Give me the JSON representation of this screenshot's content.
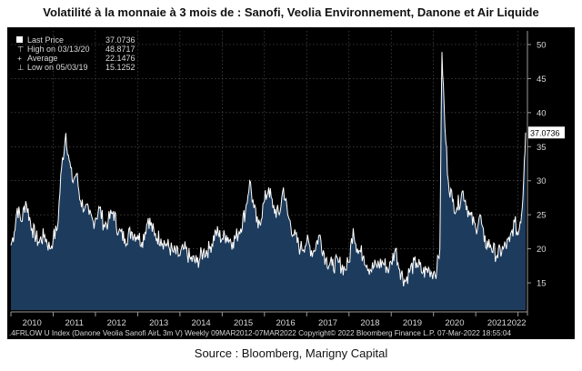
{
  "title": "Volatilité à la monnaie à 3 mois de : Sanofi, Veolia Environnement, Danone et Air Liquide",
  "source": "Source : Bloomberg, Marigny Capital",
  "chart_data": {
    "type": "area",
    "x_start": 2010.0,
    "x_end": 2022.18,
    "ylim": [
      11,
      52
    ],
    "y_ticks": [
      15,
      20,
      25,
      30,
      35,
      40,
      45,
      50
    ],
    "x_ticks": [
      "2010",
      "2011",
      "2012",
      "2013",
      "2014",
      "2015",
      "2016",
      "2017",
      "2018",
      "2019",
      "2020",
      "2021",
      "2022"
    ],
    "grid": true,
    "axis_position": "right",
    "last_price_label": "37.0736",
    "legend": [
      {
        "label": "Last Price",
        "value": "37.0736"
      },
      {
        "label": "High on 03/13/20",
        "value": "48.8717"
      },
      {
        "label": "Average",
        "value": "22.1476"
      },
      {
        "label": "Low on 05/03/19",
        "value": "15.1252"
      }
    ],
    "footer": ".4FRLOW U Index (Danone Veolia Sanofi AirL 3m V)  Weekly 09MAR2012-07MAR2022 Copyright© 2022 Bloomberg Finance L.P.  07-Mar-2022 18:55:04",
    "colors": {
      "background": "#000000",
      "line": "#ffffff",
      "fill": "#1d3b5c",
      "grid": "#5a5a5a",
      "text": "#d8d8d8",
      "label_box": "#ffffff"
    },
    "series": [
      {
        "points": [
          [
            2010.0,
            20.5
          ],
          [
            2010.08,
            22.5
          ],
          [
            2010.15,
            26
          ],
          [
            2010.25,
            24
          ],
          [
            2010.35,
            27
          ],
          [
            2010.5,
            23
          ],
          [
            2010.65,
            21
          ],
          [
            2010.8,
            22
          ],
          [
            2010.92,
            20
          ],
          [
            2011.0,
            21.5
          ],
          [
            2011.1,
            23
          ],
          [
            2011.2,
            32
          ],
          [
            2011.3,
            37
          ],
          [
            2011.38,
            33
          ],
          [
            2011.45,
            30
          ],
          [
            2011.55,
            31
          ],
          [
            2011.65,
            27
          ],
          [
            2011.75,
            26
          ],
          [
            2011.85,
            25
          ],
          [
            2011.95,
            24
          ],
          [
            2012.0,
            24.5
          ],
          [
            2012.1,
            26
          ],
          [
            2012.2,
            23.5
          ],
          [
            2012.3,
            24
          ],
          [
            2012.42,
            25.5
          ],
          [
            2012.55,
            22.5
          ],
          [
            2012.7,
            21.5
          ],
          [
            2012.85,
            22.5
          ],
          [
            2013.0,
            22
          ],
          [
            2013.1,
            21
          ],
          [
            2013.25,
            24.5
          ],
          [
            2013.4,
            22
          ],
          [
            2013.55,
            21.5
          ],
          [
            2013.7,
            20.5
          ],
          [
            2013.85,
            19.5
          ],
          [
            2014.0,
            19
          ],
          [
            2014.1,
            20
          ],
          [
            2014.25,
            18.5
          ],
          [
            2014.4,
            18
          ],
          [
            2014.55,
            19.5
          ],
          [
            2014.7,
            20
          ],
          [
            2014.85,
            22.5
          ],
          [
            2015.0,
            21.5
          ],
          [
            2015.1,
            22
          ],
          [
            2015.25,
            21
          ],
          [
            2015.4,
            22.5
          ],
          [
            2015.55,
            25.5
          ],
          [
            2015.65,
            30
          ],
          [
            2015.75,
            26
          ],
          [
            2015.85,
            23
          ],
          [
            2016.0,
            27
          ],
          [
            2016.1,
            29
          ],
          [
            2016.2,
            26
          ],
          [
            2016.35,
            25
          ],
          [
            2016.45,
            29
          ],
          [
            2016.55,
            25
          ],
          [
            2016.7,
            22
          ],
          [
            2016.85,
            20
          ],
          [
            2017.0,
            21
          ],
          [
            2017.15,
            19.5
          ],
          [
            2017.3,
            22
          ],
          [
            2017.45,
            18.5
          ],
          [
            2017.6,
            17.5
          ],
          [
            2017.75,
            18
          ],
          [
            2017.9,
            17
          ],
          [
            2018.0,
            18
          ],
          [
            2018.1,
            23
          ],
          [
            2018.2,
            20
          ],
          [
            2018.35,
            19
          ],
          [
            2018.5,
            17
          ],
          [
            2018.65,
            17.5
          ],
          [
            2018.8,
            18
          ],
          [
            2018.95,
            17
          ],
          [
            2019.0,
            18
          ],
          [
            2019.1,
            20
          ],
          [
            2019.2,
            17
          ],
          [
            2019.33,
            15.2
          ],
          [
            2019.45,
            17
          ],
          [
            2019.6,
            18
          ],
          [
            2019.75,
            16.5
          ],
          [
            2019.9,
            17
          ],
          [
            2020.0,
            16.5
          ],
          [
            2020.08,
            17
          ],
          [
            2020.15,
            20
          ],
          [
            2020.2,
            48.9
          ],
          [
            2020.27,
            38
          ],
          [
            2020.35,
            30
          ],
          [
            2020.45,
            27
          ],
          [
            2020.55,
            26
          ],
          [
            2020.7,
            28.5
          ],
          [
            2020.85,
            25
          ],
          [
            2021.0,
            23
          ],
          [
            2021.1,
            25
          ],
          [
            2021.2,
            21
          ],
          [
            2021.35,
            20.5
          ],
          [
            2021.5,
            19
          ],
          [
            2021.65,
            20
          ],
          [
            2021.8,
            21
          ],
          [
            2021.92,
            24
          ],
          [
            2022.0,
            22
          ],
          [
            2022.05,
            24
          ],
          [
            2022.1,
            26
          ],
          [
            2022.15,
            33
          ],
          [
            2022.18,
            37.07
          ]
        ]
      }
    ]
  }
}
